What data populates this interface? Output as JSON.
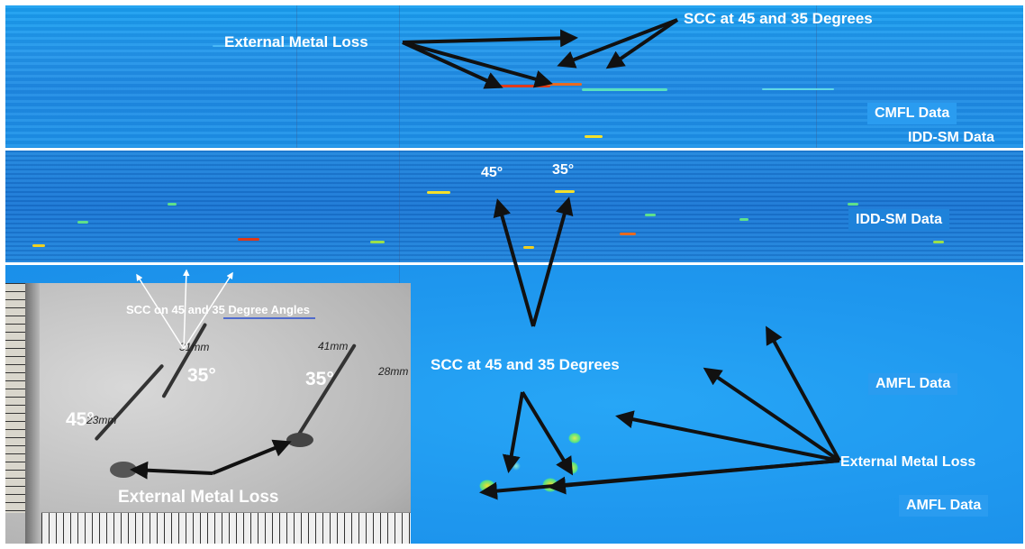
{
  "labels": {
    "scc_top": "SCC at 45 and 35 Degrees",
    "external_metal_loss_top": "External Metal Loss",
    "cmfl_data": "CMFL Data",
    "idd_sm_data_top": "IDD-SM Data",
    "idd_sm_data_mid": "IDD-SM Data",
    "angle_45_mid": "45°",
    "angle_35_mid": "35°",
    "scc_photo_title": "SCC on 45 and 35 Degree Angles",
    "photo_35_left": "35°",
    "photo_35_right": "35°",
    "photo_45": "45°",
    "photo_external_metal_loss": "External Metal Loss",
    "photo_note_23mm": "23mm",
    "photo_note_31mm": "31mm",
    "photo_note_41mm": "41mm",
    "photo_note_28mm": "28mm",
    "scc_bottom": "SCC at 45 and 35 Degrees",
    "amfl_data_top": "AMFL Data",
    "external_metal_loss_right": "External Metal Loss",
    "amfl_data_bottom": "AMFL Data"
  },
  "colors": {
    "cmfl_background": "#1f95ea",
    "idd_background": "#1a78d6",
    "amfl_background": "#1f98ef",
    "anomaly_red": "#e03a1a",
    "anomaly_yellow": "#f4e02a",
    "anomaly_green": "#4fe08a",
    "arrow": "#111111",
    "photo_surface": "#c6c6c6"
  }
}
